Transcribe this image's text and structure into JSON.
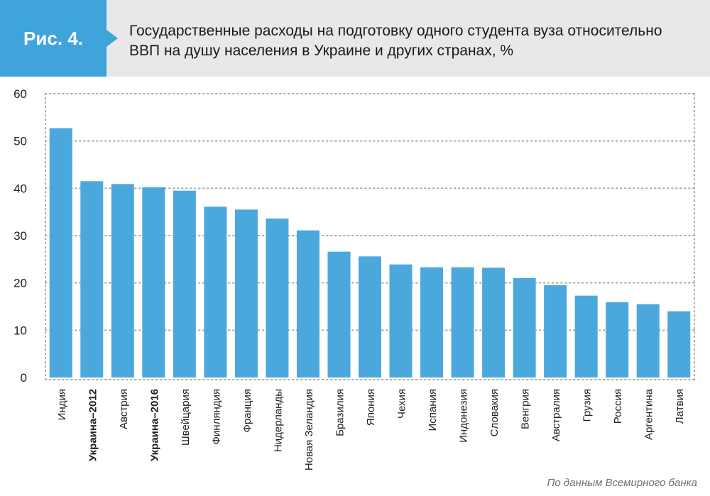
{
  "figure": {
    "label": "Рис. 4.",
    "title_line1": "Государственные расходы на подготовку одного студента вуза относительно",
    "title_line2": "ВВП на душу населения в Украине и других странах, %",
    "source": "По данным Всемирного банка"
  },
  "colors": {
    "bar": "#4ba8dd",
    "badge": "#3fa3dc",
    "grid": "#a9a9a9"
  },
  "chart_data": {
    "type": "bar",
    "title": "Государственные расходы на подготовку одного студента вуза относительно ВВП на душу населения в Украине и других странах, %",
    "categories": [
      "Индия",
      "Украина–2012",
      "Австрия",
      "Украина–2016",
      "Швейцария",
      "Финляндия",
      "Франция",
      "Нидерланды",
      "Новая Зеландия",
      "Бразилия",
      "Япония",
      "Чехия",
      "Испания",
      "Индонезия",
      "Словакия",
      "Венгрия",
      "Австралия",
      "Грузия",
      "Россия",
      "Аргентина",
      "Латвия"
    ],
    "highlighted": [
      "Украина–2012",
      "Украина–2016"
    ],
    "values": [
      52.7,
      41.5,
      40.9,
      40.2,
      39.5,
      36.1,
      35.5,
      33.6,
      31.1,
      26.6,
      25.6,
      23.9,
      23.3,
      23.3,
      23.2,
      21.0,
      19.5,
      17.3,
      15.9,
      15.5,
      14.0
    ],
    "yticks": [
      0,
      10,
      20,
      30,
      40,
      50,
      60
    ],
    "ylim": [
      0,
      60
    ],
    "grid": true
  }
}
